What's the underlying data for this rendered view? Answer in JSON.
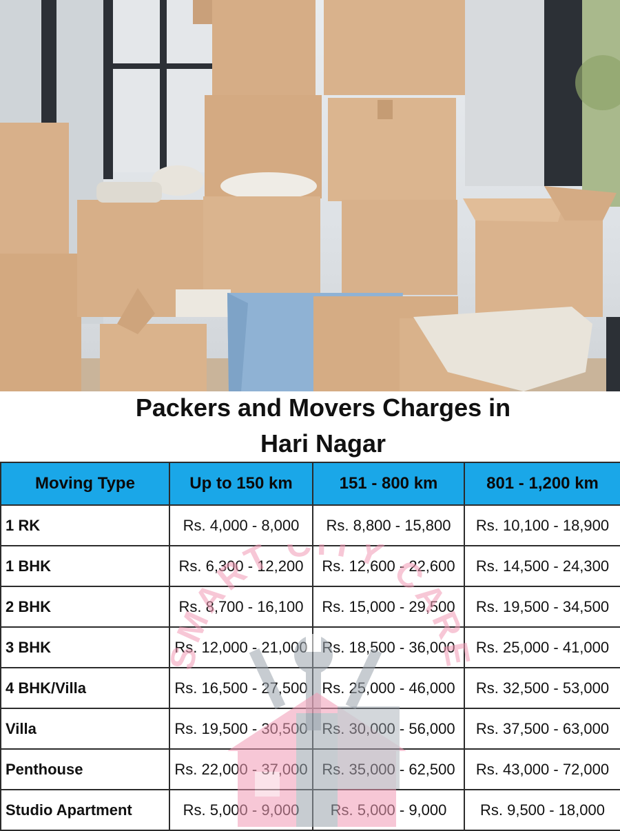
{
  "title": {
    "line1": "Packers and Movers Charges in",
    "line2": "Hari Nagar"
  },
  "table": {
    "headers": [
      "Moving Type",
      "Up to 150 km",
      "151 - 800 km",
      "801 - 1,200 km"
    ],
    "rows": [
      {
        "type": "1 RK",
        "c1": "Rs. 4,000 - 8,000",
        "c2": "Rs. 8,800 - 15,800",
        "c3": "Rs. 10,100 - 18,900"
      },
      {
        "type": "1 BHK",
        "c1": "Rs. 6,300 - 12,200",
        "c2": "Rs. 12,600 - 22,600",
        "c3": "Rs. 14,500 - 24,300"
      },
      {
        "type": "2 BHK",
        "c1": "Rs. 8,700 - 16,100",
        "c2": "Rs. 15,000 - 29,500",
        "c3": "Rs. 19,500 - 34,500"
      },
      {
        "type": "3 BHK",
        "c1": "Rs. 12,000 - 21,000",
        "c2": "Rs. 18,500 - 36,000",
        "c3": "Rs. 25,000 - 41,000"
      },
      {
        "type": "4 BHK/Villa",
        "c1": "Rs. 16,500 - 27,500",
        "c2": "Rs. 25,000 - 46,000",
        "c3": "Rs. 32,500 - 53,000"
      },
      {
        "type": "Villa",
        "c1": "Rs. 19,500 - 30,500",
        "c2": "Rs. 30,000 - 56,000",
        "c3": "Rs. 37,500 - 63,000"
      },
      {
        "type": "Penthouse",
        "c1": "Rs. 22,000 - 37,000",
        "c2": "Rs. 35,000 - 62,500",
        "c3": "Rs. 43,000 - 72,000"
      },
      {
        "type": "Studio Apartment",
        "c1": "Rs. 5,000 - 9,000",
        "c2": "Rs. 5,000 - 9,000",
        "c3": "Rs. 9,500 - 18,000"
      }
    ]
  },
  "watermark": {
    "text": "SMART CITY CARE",
    "icon": "house-with-wrench-logo"
  },
  "colors": {
    "header_bg": "#1aa7e8",
    "watermark_pink": "#f29bb5",
    "watermark_grey": "#9aa3ad",
    "box": "#d9b48f"
  },
  "photo": {
    "subject": "moving-boxes-photo"
  }
}
